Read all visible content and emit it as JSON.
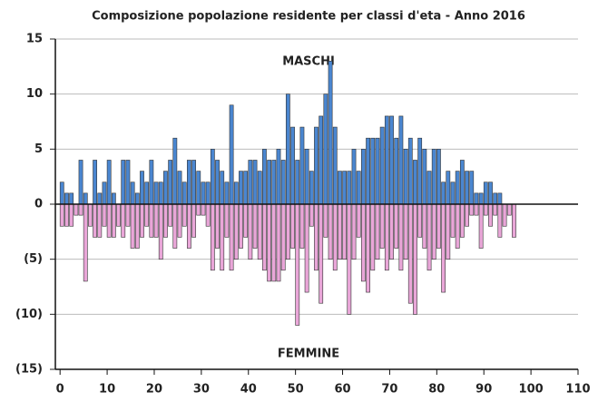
{
  "chart_data": {
    "type": "bar",
    "title": "Composizione popolazione residente per classi d'eta - Anno 2016",
    "annotations": [
      "MASCHI",
      "FEMMINE"
    ],
    "x": [
      0,
      1,
      2,
      3,
      4,
      5,
      6,
      7,
      8,
      9,
      10,
      11,
      12,
      13,
      14,
      15,
      16,
      17,
      18,
      19,
      20,
      21,
      22,
      23,
      24,
      25,
      26,
      27,
      28,
      29,
      30,
      31,
      32,
      33,
      34,
      35,
      36,
      37,
      38,
      39,
      40,
      41,
      42,
      43,
      44,
      45,
      46,
      47,
      48,
      49,
      50,
      51,
      52,
      53,
      54,
      55,
      56,
      57,
      58,
      59,
      60,
      61,
      62,
      63,
      64,
      65,
      66,
      67,
      68,
      69,
      70,
      71,
      72,
      73,
      74,
      75,
      76,
      77,
      78,
      79,
      80,
      81,
      82,
      83,
      84,
      85,
      86,
      87,
      88,
      89,
      90,
      91,
      92,
      93,
      94,
      95,
      96,
      97
    ],
    "series": [
      {
        "name": "MASCHI",
        "color": "#4a86d0",
        "values": [
          2,
          1,
          1,
          0,
          4,
          1,
          0,
          4,
          1,
          2,
          4,
          1,
          0,
          4,
          4,
          2,
          1,
          3,
          2,
          4,
          2,
          2,
          3,
          4,
          6,
          3,
          2,
          4,
          4,
          3,
          2,
          2,
          5,
          4,
          3,
          2,
          9,
          2,
          3,
          3,
          4,
          4,
          3,
          5,
          4,
          4,
          5,
          4,
          10,
          7,
          4,
          7,
          5,
          3,
          7,
          8,
          10,
          13,
          7,
          3,
          3,
          3,
          5,
          3,
          5,
          6,
          6,
          6,
          7,
          8,
          8,
          6,
          8,
          5,
          6,
          4,
          6,
          5,
          3,
          5,
          5,
          2,
          3,
          2,
          3,
          4,
          3,
          3,
          1,
          1,
          2,
          2,
          1,
          1,
          null,
          null,
          null,
          null
        ]
      },
      {
        "name": "FEMMINE",
        "color": "#e9a6d8",
        "values": [
          -2,
          -2,
          -2,
          -1,
          -1,
          -7,
          -2,
          -3,
          -3,
          -2,
          -3,
          -3,
          -2,
          -3,
          -2,
          -4,
          -4,
          -3,
          -2,
          -3,
          -3,
          -5,
          -3,
          -2,
          -4,
          -3,
          -2,
          -4,
          -3,
          -1,
          -1,
          -2,
          -6,
          -4,
          -6,
          -3,
          -6,
          -5,
          -4,
          -3,
          -5,
          -4,
          -5,
          -6,
          -7,
          -7,
          -7,
          -6,
          -5,
          -4,
          -11,
          -4,
          -8,
          -2,
          -6,
          -9,
          -3,
          -5,
          -6,
          -5,
          -5,
          -10,
          -5,
          -3,
          -7,
          -8,
          -6,
          -5,
          -4,
          -6,
          -5,
          -4,
          -6,
          -5,
          -9,
          -10,
          -3,
          -4,
          -6,
          -5,
          -4,
          -8,
          -5,
          -3,
          -4,
          -3,
          -2,
          -1,
          -1,
          -4,
          -1,
          -2,
          -1,
          -3,
          -2,
          -1,
          -3,
          null
        ]
      }
    ],
    "xlim": [
      -1,
      110
    ],
    "xticks": [
      0,
      10,
      20,
      30,
      40,
      50,
      60,
      70,
      80,
      90,
      100,
      110
    ],
    "ylim": [
      -15,
      15
    ],
    "yticks": [
      {
        "value": -15,
        "label": "(15)"
      },
      {
        "value": -10,
        "label": "(10)"
      },
      {
        "value": -5,
        "label": "(5)"
      },
      0,
      5,
      10,
      15
    ],
    "grid": true
  }
}
